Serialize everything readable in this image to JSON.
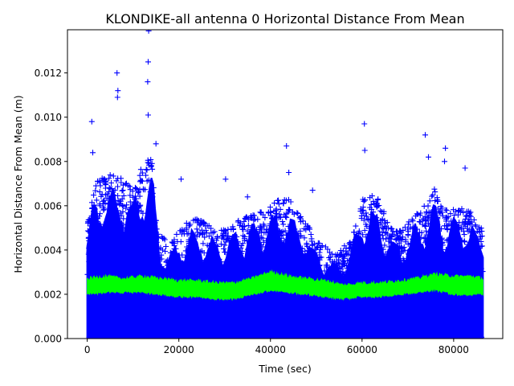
{
  "chart_data": {
    "type": "scatter",
    "title": "KLONDIKE-all antenna 0 Horizontal Distance From Mean",
    "xlabel": "Time (sec)",
    "ylabel": "Horizontal Distance From Mean (m)",
    "xlim": [
      -4320,
      90720
    ],
    "ylim": [
      0,
      0.01395
    ],
    "xticks": [
      0,
      20000,
      40000,
      60000,
      80000
    ],
    "xtick_labels": [
      "0",
      "20000",
      "40000",
      "60000",
      "80000"
    ],
    "yticks": [
      0,
      0.002,
      0.004,
      0.006,
      0.008,
      0.01,
      0.012
    ],
    "ytick_labels": [
      "0.000",
      "0.002",
      "0.004",
      "0.006",
      "0.008",
      "0.010",
      "0.012"
    ],
    "grid": false,
    "series": [
      {
        "name": "horizontal distance samples",
        "marker": "+",
        "color": "#0000ff",
        "envelope_bin_sec": 2000,
        "envelope_start_sec": 0,
        "upper_envelope": [
          0.005,
          0.0068,
          0.007,
          0.0072,
          0.0068,
          0.0065,
          0.0075,
          0.0078,
          0.0045,
          0.004,
          0.0048,
          0.005,
          0.0052,
          0.005,
          0.0046,
          0.0048,
          0.005,
          0.0052,
          0.0054,
          0.0055,
          0.0058,
          0.006,
          0.006,
          0.0055,
          0.005,
          0.0042,
          0.004,
          0.0036,
          0.004,
          0.0045,
          0.006,
          0.0062,
          0.006,
          0.0048,
          0.0046,
          0.005,
          0.0054,
          0.0058,
          0.0065,
          0.0055,
          0.0058,
          0.0056,
          0.0055,
          0.0048
        ],
        "outliers": [
          [
            1000,
            0.0098
          ],
          [
            1200,
            0.0084
          ],
          [
            6500,
            0.012
          ],
          [
            6600,
            0.0109
          ],
          [
            6700,
            0.0112
          ],
          [
            13400,
            0.0139
          ],
          [
            13300,
            0.0125
          ],
          [
            13200,
            0.0116
          ],
          [
            13300,
            0.0101
          ],
          [
            15000,
            0.0088
          ],
          [
            20500,
            0.0072
          ],
          [
            30200,
            0.0072
          ],
          [
            35000,
            0.0064
          ],
          [
            43500,
            0.0087
          ],
          [
            44000,
            0.0075
          ],
          [
            49200,
            0.0067
          ],
          [
            60500,
            0.0097
          ],
          [
            60600,
            0.0085
          ],
          [
            73800,
            0.0092
          ],
          [
            74500,
            0.0082
          ],
          [
            78200,
            0.0086
          ],
          [
            82500,
            0.0077
          ],
          [
            78000,
            0.008
          ]
        ]
      },
      {
        "name": "running mean",
        "color": "#00ff00",
        "x": [
          0,
          4000,
          8000,
          12000,
          16000,
          20000,
          24000,
          28000,
          32000,
          36000,
          40000,
          44000,
          48000,
          52000,
          56000,
          60000,
          64000,
          68000,
          72000,
          76000,
          80000,
          84000,
          86400
        ],
        "lower": [
          0.002,
          0.0021,
          0.0021,
          0.0021,
          0.002,
          0.0019,
          0.0019,
          0.0018,
          0.0018,
          0.002,
          0.0022,
          0.0021,
          0.002,
          0.0019,
          0.0018,
          0.0019,
          0.0019,
          0.002,
          0.0021,
          0.0022,
          0.002,
          0.002,
          0.002
        ],
        "upper": [
          0.0027,
          0.0028,
          0.0027,
          0.0028,
          0.0027,
          0.0026,
          0.0026,
          0.0025,
          0.0025,
          0.0027,
          0.003,
          0.0028,
          0.0027,
          0.0026,
          0.0024,
          0.0025,
          0.0025,
          0.0026,
          0.0027,
          0.0029,
          0.0028,
          0.0028,
          0.0027
        ]
      }
    ]
  }
}
